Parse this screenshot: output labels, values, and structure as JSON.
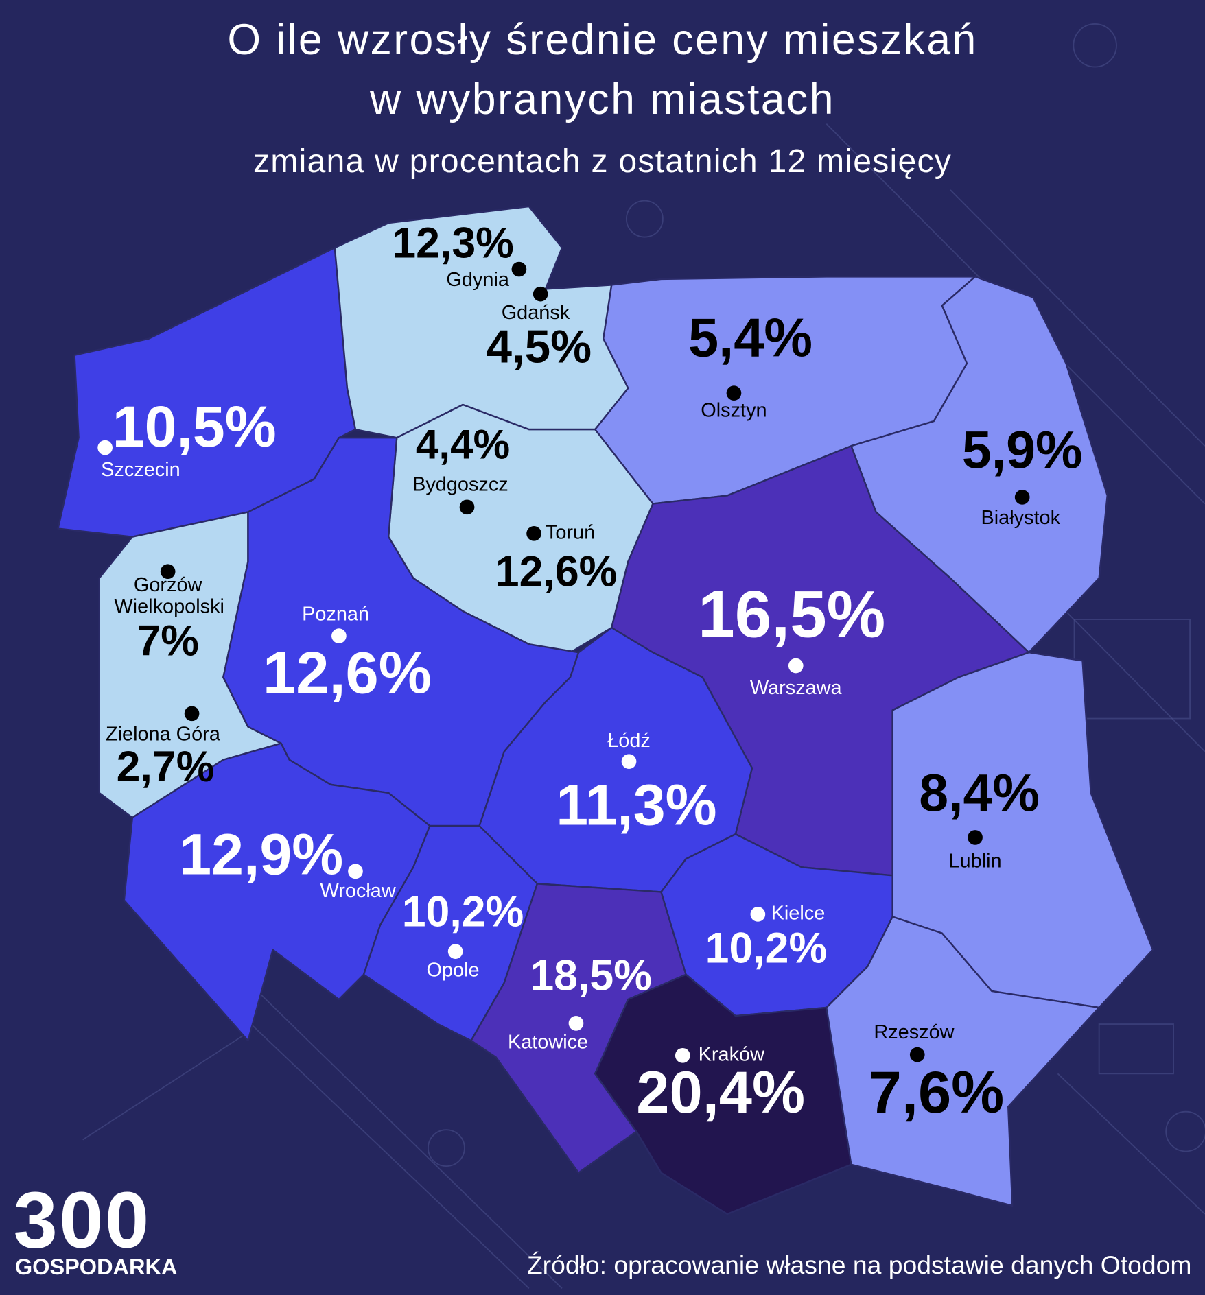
{
  "header": {
    "title_lines": [
      "O ile wzrosły średnie ceny mieszkań",
      "w wybranych miastach"
    ],
    "subtitle": "zmiana w procentach z ostatnich 12 miesięcy"
  },
  "map": {
    "regions": [
      {
        "color": "#3f3fe6",
        "cities": [
          {
            "name": "Szczecin",
            "change": "10,5%"
          }
        ]
      },
      {
        "color": "#b5d8f2",
        "cities": [
          {
            "name": "Gdynia",
            "change": "12,3%"
          },
          {
            "name": "Gdańsk",
            "change": "4,5%"
          }
        ]
      },
      {
        "color": "#8490f5",
        "cities": [
          {
            "name": "Olsztyn",
            "change": "5,4%"
          }
        ]
      },
      {
        "color": "#8490f5",
        "cities": [
          {
            "name": "Białystok",
            "change": "5,9%"
          }
        ]
      },
      {
        "color": "#b5d8f2",
        "cities": [
          {
            "name": "Bydgoszcz",
            "change": "4,4%"
          },
          {
            "name": "Toruń",
            "change": "12,6%"
          }
        ]
      },
      {
        "color": "#b5d8f2",
        "cities": [
          {
            "name": "Gorzów Wielkopolski",
            "change": "7%"
          },
          {
            "name": "Zielona Góra",
            "change": "2,7%"
          }
        ]
      },
      {
        "color": "#3f3fe6",
        "cities": [
          {
            "name": "Poznań",
            "change": "12,6%"
          }
        ]
      },
      {
        "color": "#4c30b8",
        "cities": [
          {
            "name": "Warszawa",
            "change": "16,5%"
          }
        ]
      },
      {
        "color": "#3f3fe6",
        "cities": [
          {
            "name": "Łódź",
            "change": "11,3%"
          }
        ]
      },
      {
        "color": "#8490f5",
        "cities": [
          {
            "name": "Lublin",
            "change": "8,4%"
          }
        ]
      },
      {
        "color": "#3f3fe6",
        "cities": [
          {
            "name": "Wrocław",
            "change": "12,9%"
          }
        ]
      },
      {
        "color": "#3f3fe6",
        "cities": [
          {
            "name": "Opole",
            "change": "10,2%"
          }
        ]
      },
      {
        "color": "#4c30b8",
        "cities": [
          {
            "name": "Katowice",
            "change": "18,5%"
          }
        ]
      },
      {
        "color": "#3f3fe6",
        "cities": [
          {
            "name": "Kielce",
            "change": "10,2%"
          }
        ]
      },
      {
        "color": "#22154f",
        "cities": [
          {
            "name": "Kraków",
            "change": "20,4%"
          }
        ]
      },
      {
        "color": "#8490f5",
        "cities": [
          {
            "name": "Rzeszów",
            "change": "7,6%"
          }
        ]
      }
    ]
  },
  "footer": {
    "logo_number": "300",
    "logo_name": "GOSPODARKA",
    "source": "Źródło: opracowanie własne na podstawie danych Otodom"
  }
}
